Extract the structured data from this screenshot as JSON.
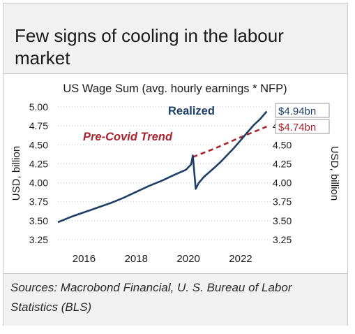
{
  "headline": "Few signs of cooling in the labour market",
  "source": "Sources: Macrobond Financial, U. S. Bureau of Labor Statistics (BLS)",
  "colors": {
    "realized": "#1d3f66",
    "trend": "#a8242e",
    "axis_text": "#1a1a1a",
    "grid": "#bfbfbf",
    "panel_bg": "#f1f1f1"
  },
  "chart_data": {
    "type": "line",
    "title": "US Wage Sum (avg. hourly earnings * NFP)",
    "ylabel_left": "USD, billion",
    "ylabel_right": "USD, billion",
    "xlim": [
      2015.0,
      2023.15
    ],
    "ylim": [
      3.25,
      5.0
    ],
    "x_ticks": [
      2016,
      2018,
      2020,
      2022
    ],
    "x_tick_labels": [
      "2016",
      "2018",
      "2020",
      "2022"
    ],
    "y_ticks": [
      3.25,
      3.5,
      3.75,
      4.0,
      4.25,
      4.5,
      4.75,
      5.0
    ],
    "y_tick_labels_left": [
      "3.25",
      "3.50",
      "3.75",
      "4.00",
      "4.25",
      "4.50",
      "4.75",
      "5.00"
    ],
    "y_ticks_right": [
      3.25,
      3.5,
      3.75,
      4.0,
      4.25,
      4.5,
      4.75
    ],
    "y_tick_labels_right": [
      "3.25",
      "3.50",
      "3.75",
      "4.00",
      "4.25",
      "4.50",
      "4.75"
    ],
    "grid": "dotted horizontal",
    "series": [
      {
        "name": "Realized",
        "style": "solid",
        "end_label": "$4.94bn",
        "x": [
          2015.0,
          2015.5,
          2016.0,
          2016.5,
          2017.0,
          2017.5,
          2018.0,
          2018.5,
          2019.0,
          2019.5,
          2019.9,
          2020.1,
          2020.17,
          2020.28,
          2020.4,
          2020.6,
          2020.8,
          2021.0,
          2021.25,
          2021.5,
          2021.75,
          2022.0,
          2022.25,
          2022.5,
          2022.75,
          2023.0
        ],
        "values": [
          3.48,
          3.55,
          3.61,
          3.67,
          3.73,
          3.8,
          3.88,
          3.96,
          4.03,
          4.11,
          4.17,
          4.24,
          4.36,
          3.92,
          4.0,
          4.08,
          4.14,
          4.2,
          4.28,
          4.37,
          4.46,
          4.56,
          4.66,
          4.76,
          4.84,
          4.94
        ]
      },
      {
        "name": "Pre-Covid Trend",
        "style": "dashed",
        "end_label": "$4.74bn",
        "x": [
          2020.17,
          2021.0,
          2022.0,
          2023.0
        ],
        "values": [
          4.34,
          4.45,
          4.6,
          4.74
        ]
      }
    ]
  }
}
